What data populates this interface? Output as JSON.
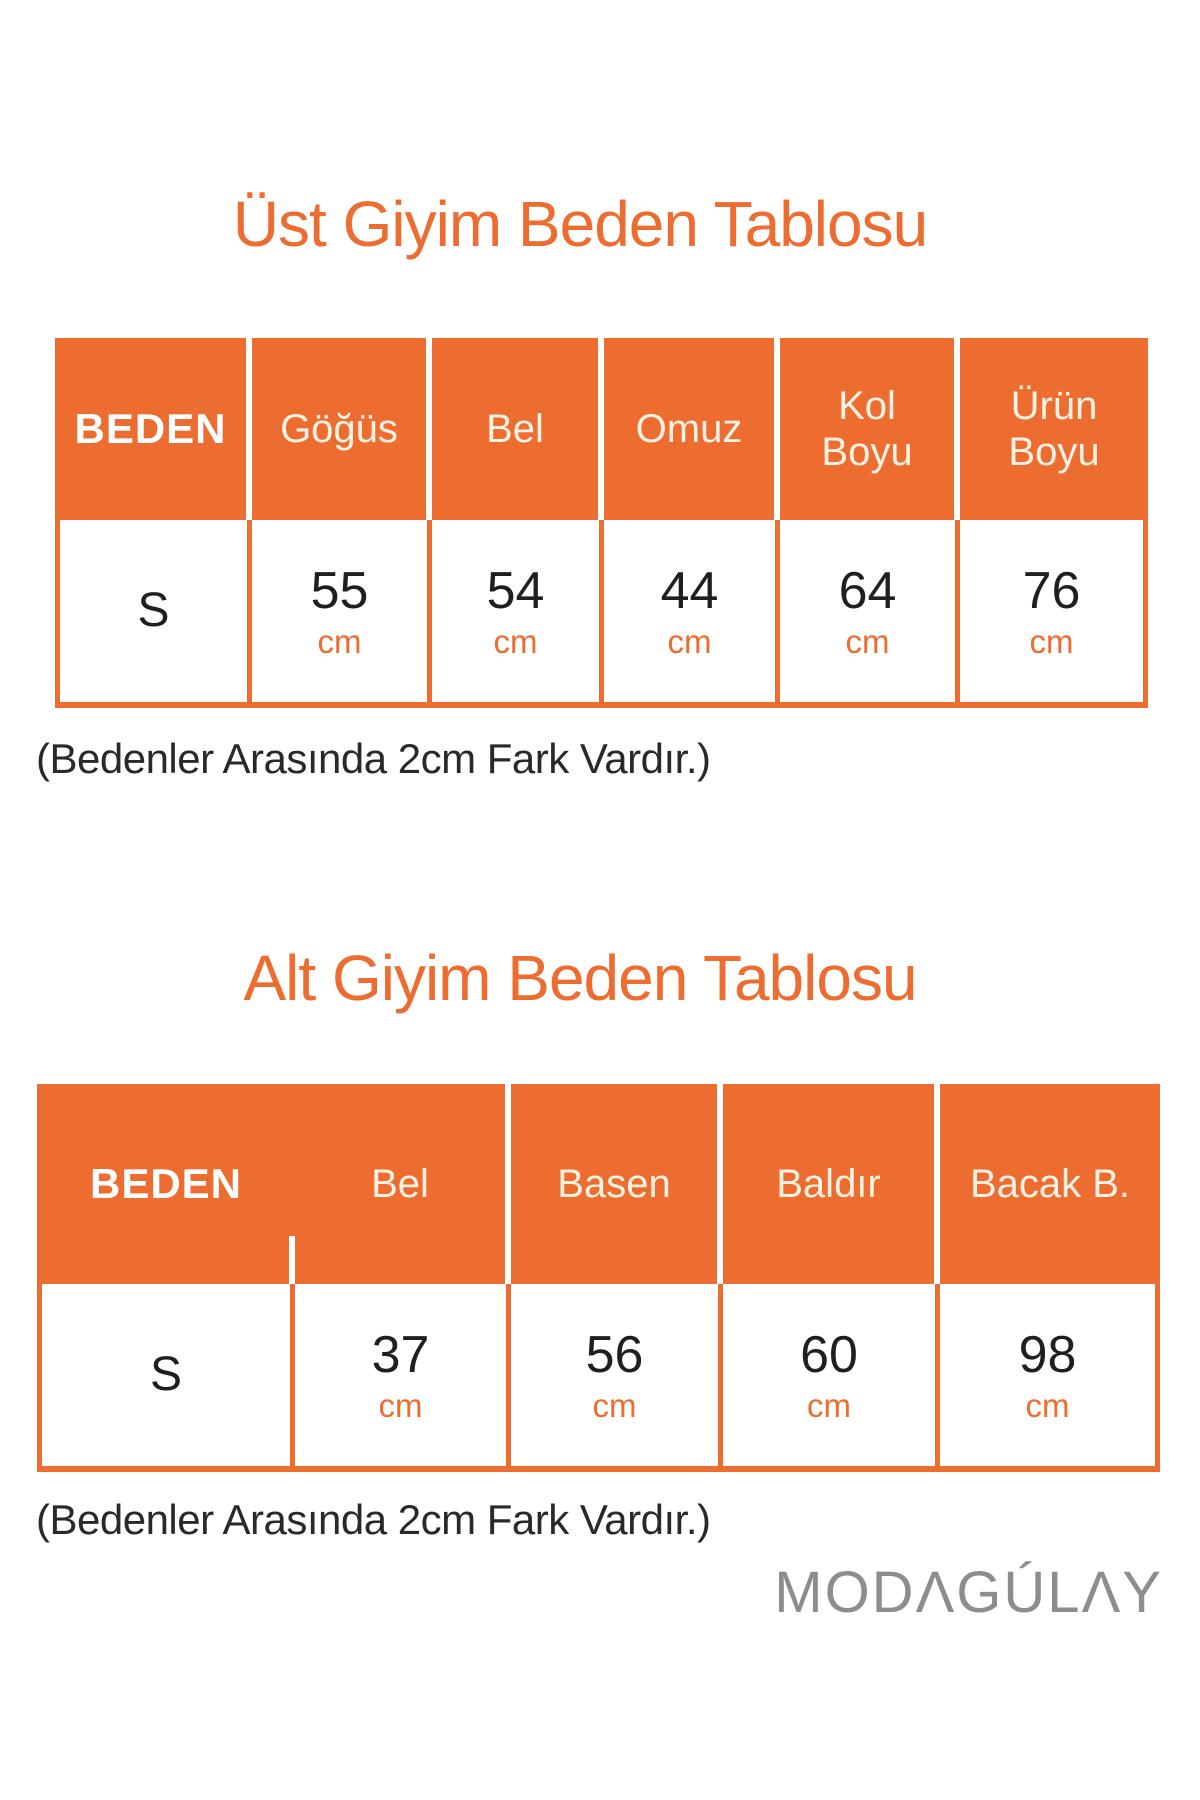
{
  "colors": {
    "accent_orange": "#ED6C30",
    "header_text": "#FBF2E3",
    "beden_text": "#FFFFFF",
    "value_text": "#1F1F1F",
    "note_text": "#292929",
    "logo_gray": "#8D8D8D",
    "background": "#FFFFFF"
  },
  "upper_table": {
    "title": "Üst Giyim Beden Tablosu",
    "columns": [
      "BEDEN",
      "Göğüs",
      "Bel",
      "Omuz",
      "Kol\nBoyu",
      "Ürün\nBoyu"
    ],
    "row": {
      "size": "S",
      "values": [
        "55",
        "54",
        "44",
        "64",
        "76"
      ],
      "unit": "cm"
    },
    "note": "(Bedenler Arasında 2cm Fark Vardır.)"
  },
  "lower_table": {
    "title": "Alt Giyim Beden Tablosu",
    "columns": [
      "BEDEN",
      "Bel",
      "Basen",
      "Baldır",
      "Bacak B."
    ],
    "row": {
      "size": "S",
      "values": [
        "37",
        "56",
        "60",
        "98"
      ],
      "unit": "cm"
    },
    "note": "(Bedenler Arasında 2cm Fark Vardır.)"
  },
  "brand": {
    "logo_text": "MODΛGÚLΛY"
  },
  "chart_data": [
    {
      "type": "table",
      "title": "Üst Giyim Beden Tablosu",
      "columns": [
        "BEDEN",
        "Göğüs",
        "Bel",
        "Omuz",
        "Kol Boyu",
        "Ürün Boyu"
      ],
      "rows": [
        [
          "S",
          "55 cm",
          "54 cm",
          "44 cm",
          "64 cm",
          "76 cm"
        ]
      ],
      "note": "(Bedenler Arasında 2cm Fark Vardır.)"
    },
    {
      "type": "table",
      "title": "Alt Giyim Beden Tablosu",
      "columns": [
        "BEDEN",
        "Bel",
        "Basen",
        "Baldır",
        "Bacak B."
      ],
      "rows": [
        [
          "S",
          "37 cm",
          "56 cm",
          "60 cm",
          "98 cm"
        ]
      ],
      "note": "(Bedenler Arasında 2cm Fark Vardır.)"
    }
  ]
}
